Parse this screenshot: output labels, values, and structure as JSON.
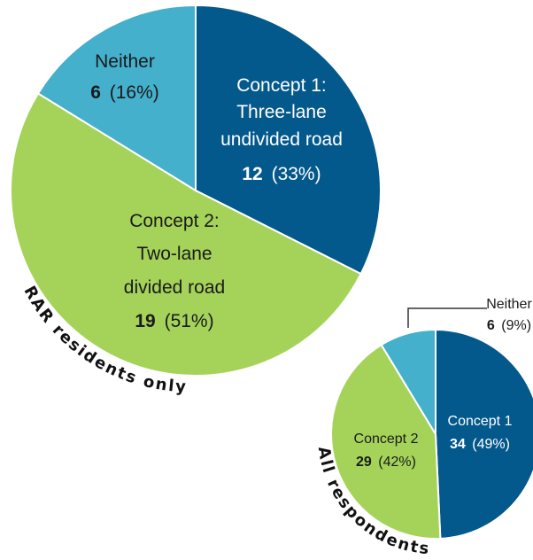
{
  "colors": {
    "concept1": "#03588c",
    "concept2": "#a5d35a",
    "neither": "#45b0cc"
  },
  "chart_data": [
    {
      "type": "pie",
      "group_label": "RAR residents only",
      "slices": [
        {
          "name": "Concept 1: Three-lane undivided road",
          "label_lines": [
            "Concept 1:",
            "Three-lane",
            "undivided road"
          ],
          "count": "12",
          "pct": "(33%)",
          "value": 12,
          "color": "#03588c"
        },
        {
          "name": "Concept 2: Two-lane divided road",
          "label_lines": [
            "Concept 2:",
            "Two-lane",
            "divided road"
          ],
          "count": "19",
          "pct": "(51%)",
          "value": 19,
          "color": "#a5d35a"
        },
        {
          "name": "Neither",
          "label_lines": [
            "Neither"
          ],
          "count": "6",
          "pct": "(16%)",
          "value": 6,
          "color": "#45b0cc"
        }
      ]
    },
    {
      "type": "pie",
      "group_label": "All respondents",
      "slices": [
        {
          "name": "Concept 1",
          "label_lines": [
            "Concept 1"
          ],
          "count": "34",
          "pct": "(49%)",
          "value": 34,
          "color": "#03588c"
        },
        {
          "name": "Concept 2",
          "label_lines": [
            "Concept 2"
          ],
          "count": "29",
          "pct": "(42%)",
          "value": 29,
          "color": "#a5d35a"
        },
        {
          "name": "Neither",
          "label_lines": [
            "Neither"
          ],
          "count": "6",
          "pct": "(9%)",
          "value": 6,
          "color": "#45b0cc"
        }
      ]
    }
  ]
}
